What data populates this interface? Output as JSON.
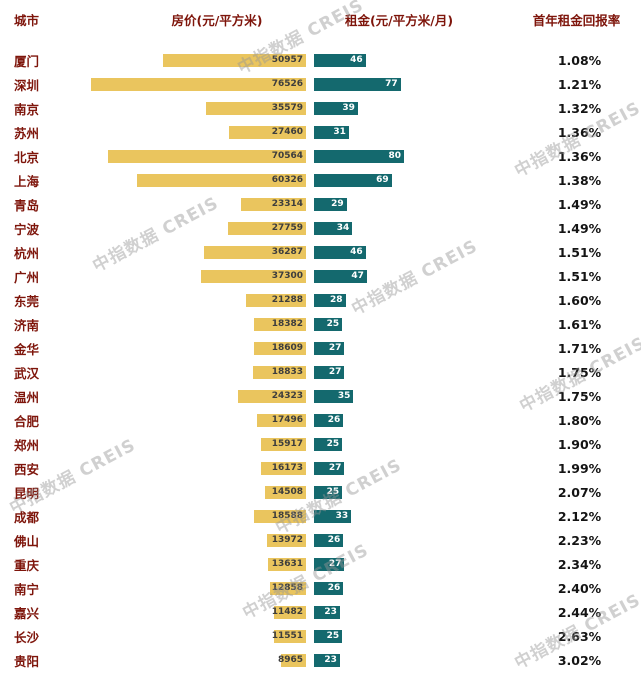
{
  "watermark": {
    "text": "中指数据 CREIS"
  },
  "colors": {
    "price_bar": "#EAC55E",
    "rent_bar": "#14696E",
    "city_text": "#7E150B",
    "header_text": "#7E150B"
  },
  "chart_data": {
    "type": "bar",
    "orientation": "horizontal-tornado",
    "legend_position": "none",
    "grid": false,
    "headers": {
      "city": "城市",
      "price": "房价(元/平方米)",
      "rent": "租金(元/平方米/月)",
      "yield": "首年租金回报率"
    },
    "price_axis_max": 76526,
    "rent_axis_max": 80,
    "rows": [
      {
        "city": "厦门",
        "price": 50957,
        "rent": 46,
        "yield": "1.08%"
      },
      {
        "city": "深圳",
        "price": 76526,
        "rent": 77,
        "yield": "1.21%"
      },
      {
        "city": "南京",
        "price": 35579,
        "rent": 39,
        "yield": "1.32%"
      },
      {
        "city": "苏州",
        "price": 27460,
        "rent": 31,
        "yield": "1.36%"
      },
      {
        "city": "北京",
        "price": 70564,
        "rent": 80,
        "yield": "1.36%"
      },
      {
        "city": "上海",
        "price": 60326,
        "rent": 69,
        "yield": "1.38%"
      },
      {
        "city": "青岛",
        "price": 23314,
        "rent": 29,
        "yield": "1.49%"
      },
      {
        "city": "宁波",
        "price": 27759,
        "rent": 34,
        "yield": "1.49%"
      },
      {
        "city": "杭州",
        "price": 36287,
        "rent": 46,
        "yield": "1.51%"
      },
      {
        "city": "广州",
        "price": 37300,
        "rent": 47,
        "yield": "1.51%"
      },
      {
        "city": "东莞",
        "price": 21288,
        "rent": 28,
        "yield": "1.60%"
      },
      {
        "city": "济南",
        "price": 18382,
        "rent": 25,
        "yield": "1.61%"
      },
      {
        "city": "金华",
        "price": 18609,
        "rent": 27,
        "yield": "1.71%"
      },
      {
        "city": "武汉",
        "price": 18833,
        "rent": 27,
        "yield": "1.75%"
      },
      {
        "city": "温州",
        "price": 24323,
        "rent": 35,
        "yield": "1.75%"
      },
      {
        "city": "合肥",
        "price": 17496,
        "rent": 26,
        "yield": "1.80%"
      },
      {
        "city": "郑州",
        "price": 15917,
        "rent": 25,
        "yield": "1.90%"
      },
      {
        "city": "西安",
        "price": 16173,
        "rent": 27,
        "yield": "1.99%"
      },
      {
        "city": "昆明",
        "price": 14508,
        "rent": 25,
        "yield": "2.07%"
      },
      {
        "city": "成都",
        "price": 18588,
        "rent": 33,
        "yield": "2.12%"
      },
      {
        "city": "佛山",
        "price": 13972,
        "rent": 26,
        "yield": "2.23%"
      },
      {
        "city": "重庆",
        "price": 13631,
        "rent": 27,
        "yield": "2.34%"
      },
      {
        "city": "南宁",
        "price": 12858,
        "rent": 26,
        "yield": "2.40%"
      },
      {
        "city": "嘉兴",
        "price": 11482,
        "rent": 23,
        "yield": "2.44%"
      },
      {
        "city": "长沙",
        "price": 11551,
        "rent": 25,
        "yield": "2.63%"
      },
      {
        "city": "贵阳",
        "price": 8965,
        "rent": 23,
        "yield": "3.02%"
      }
    ]
  }
}
